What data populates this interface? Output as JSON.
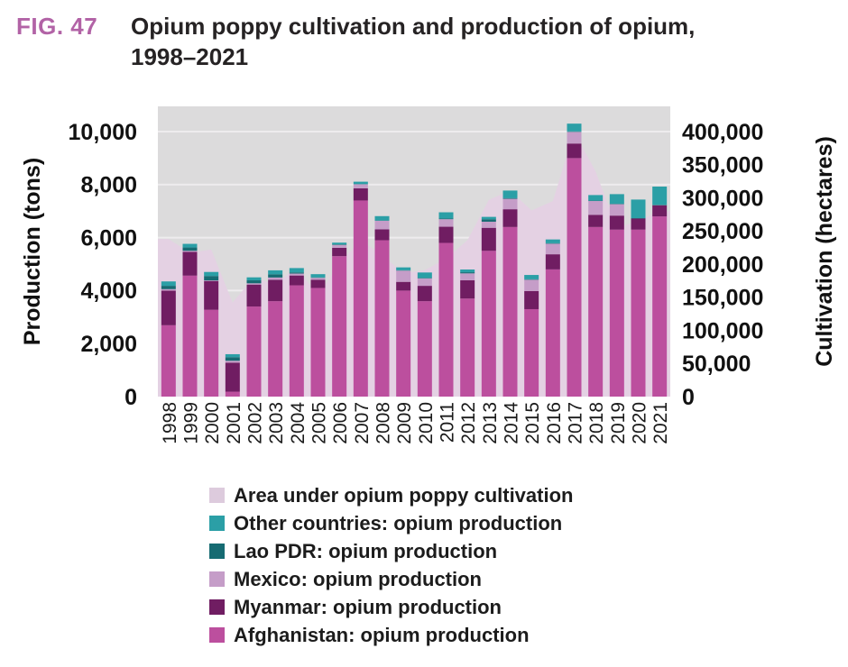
{
  "header": {
    "fig_label": "FIG. 47",
    "title_line1": "Opium poppy cultivation and production of opium,",
    "title_line2": "1998–2021"
  },
  "axes": {
    "left_title": "Production (tons)",
    "right_title": "Cultivation (hectares)",
    "left_ticks": [
      "0",
      "2,000",
      "4,000",
      "6,000",
      "8,000",
      "10,000"
    ],
    "left_tick_values": [
      0,
      2000,
      4000,
      6000,
      8000,
      10000
    ],
    "right_ticks": [
      "0",
      "50,000",
      "100,000",
      "150,000",
      "200,000",
      "250,000",
      "300,000",
      "350,000",
      "400,000"
    ],
    "right_tick_values": [
      0,
      50000,
      100000,
      150000,
      200000,
      250000,
      300000,
      350000,
      400000
    ]
  },
  "colors": {
    "plot_background": "#dcdbdc",
    "gridline": "#eeecee",
    "area_fill": "#e4d1e3",
    "afghanistan": "#bc4f9e",
    "myanmar": "#701d62",
    "mexico": "#c59dc8",
    "lao_pdr": "#166b72",
    "other_countries": "#2b9fa6",
    "fig_label": "#b263a6",
    "legend_area_swatch": "#ddcbdd"
  },
  "legend": {
    "items": [
      {
        "label": "Area under opium poppy cultivation",
        "color": "#ddcbdd"
      },
      {
        "label": "Other countries: opium production",
        "color": "#2b9fa6"
      },
      {
        "label": "Lao PDR: opium production",
        "color": "#166b72"
      },
      {
        "label": "Mexico: opium production",
        "color": "#c59dc8"
      },
      {
        "label": "Myanmar: opium production",
        "color": "#701d62"
      },
      {
        "label": "Afghanistan: opium production",
        "color": "#bc4f9e"
      }
    ]
  },
  "chart_data": {
    "type": "bar",
    "subtype": "stacked-bars-with-background-area",
    "title": "Opium poppy cultivation and production of opium, 1998–2021",
    "xlabel": "",
    "ylabel_left": "Production (tons)",
    "ylabel_right": "Cultivation (hectares)",
    "ylim_left": [
      0,
      10000
    ],
    "ylim_right": [
      0,
      400000
    ],
    "grid": true,
    "legend_position": "bottom",
    "x_tick_rotation": 90,
    "categories": [
      "1998",
      "1999",
      "2000",
      "2001",
      "2002",
      "2003",
      "2004",
      "2005",
      "2006",
      "2007",
      "2008",
      "2009",
      "2010",
      "2011",
      "2012",
      "2013",
      "2014",
      "2015",
      "2016",
      "2017",
      "2018",
      "2019",
      "2020",
      "2021"
    ],
    "series": [
      {
        "name": "Afghanistan: opium production",
        "axis": "left",
        "color": "#bc4f9e",
        "values": [
          2693,
          4565,
          3276,
          185,
          3400,
          3600,
          4200,
          4100,
          5300,
          7400,
          5900,
          4000,
          3600,
          5800,
          3700,
          5500,
          6400,
          3300,
          4800,
          9000,
          6400,
          6300,
          6300,
          6800
        ]
      },
      {
        "name": "Myanmar: opium production",
        "axis": "left",
        "color": "#701d62",
        "values": [
          1303,
          895,
          1087,
          1097,
          828,
          810,
          370,
          312,
          315,
          460,
          410,
          330,
          580,
          610,
          690,
          870,
          670,
          680,
          570,
          550,
          460,
          530,
          420,
          420
        ]
      },
      {
        "name": "Mexico: opium production",
        "axis": "left",
        "color": "#c59dc8",
        "values": [
          60,
          43,
          21,
          71,
          47,
          84,
          73,
          71,
          108,
          150,
          325,
          425,
          280,
          285,
          260,
          230,
          395,
          430,
          400,
          440,
          520,
          430,
          0,
          0
        ]
      },
      {
        "name": "Lao PDR: opium production",
        "axis": "left",
        "color": "#166b72",
        "values": [
          124,
          124,
          167,
          134,
          112,
          120,
          43,
          14,
          20,
          9,
          10,
          11,
          18,
          25,
          41,
          92,
          20,
          15,
          15,
          15,
          15,
          15,
          15,
          15
        ]
      },
      {
        "name": "Other countries: opium production",
        "axis": "left",
        "color": "#2b9fa6",
        "values": [
          166,
          137,
          152,
          113,
          113,
          151,
          164,
          123,
          67,
          90,
          165,
          110,
          205,
          235,
          105,
          90,
          290,
          165,
          145,
          295,
          210,
          365,
          700,
          690
        ]
      }
    ],
    "area_series": {
      "name": "Area under opium poppy cultivation",
      "axis": "right",
      "color": "#e4d1e3",
      "values": [
        238000,
        217000,
        222000,
        142000,
        180000,
        169000,
        196000,
        152000,
        201000,
        236000,
        214000,
        186000,
        191000,
        208000,
        236000,
        297000,
        311000,
        281000,
        295000,
        400000,
        340000,
        255000,
        265000,
        280000
      ]
    }
  }
}
